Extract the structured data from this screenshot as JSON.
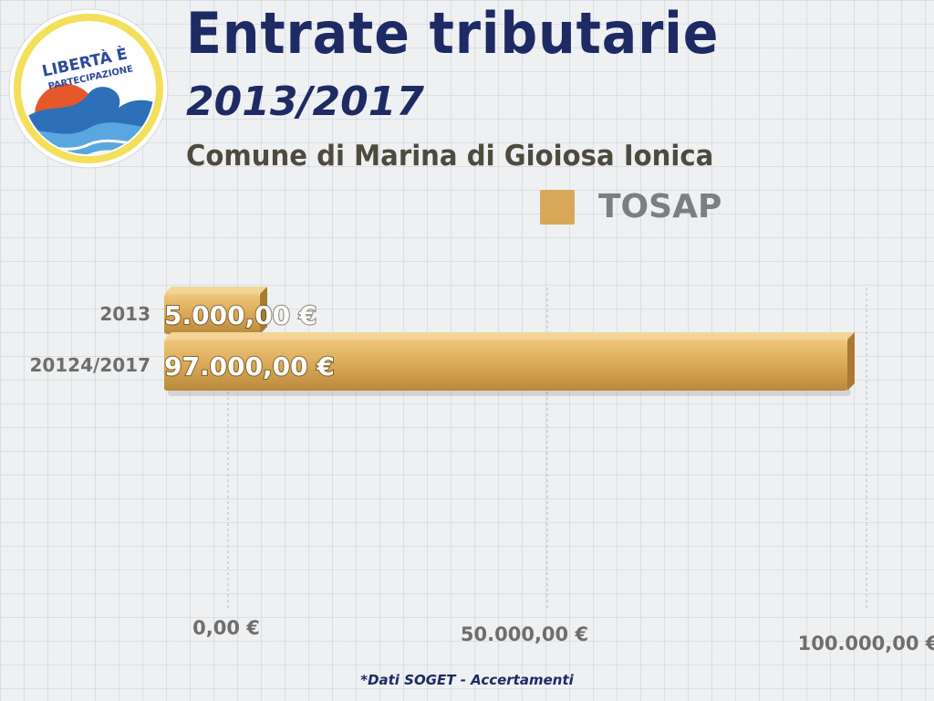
{
  "logo": {
    "text_line1": "LIBERTÀ È",
    "text_line2": "PARTECIPAZIONE",
    "icon": "wave-sun-logo",
    "colors": {
      "ring": "#f4df5a",
      "sky": "#2d6fb8",
      "sun": "#e4582b",
      "wave": "#3b89d0"
    }
  },
  "header": {
    "title": "Entrate tributarie",
    "period": "2013/2017",
    "subtitle": "Comune di Marina di Gioiosa Ionica"
  },
  "footnote": "*Dati SOGET - Accertamenti",
  "chart_data": {
    "type": "bar",
    "orientation": "horizontal",
    "categories": [
      "2013",
      "20124/2017"
    ],
    "series": [
      {
        "name": "TOSAP",
        "values": [
          5000,
          97000
        ],
        "color": "#d7a858"
      }
    ],
    "data_labels": [
      "5.000,00 €",
      "97.000,00 €"
    ],
    "x_ticks": [
      0,
      50000,
      100000
    ],
    "x_tick_labels": [
      "0,00 €",
      "50.000,00 €",
      "100.000,00 €"
    ],
    "xlim": [
      0,
      100000
    ],
    "legend": "top-right",
    "grid": true
  }
}
